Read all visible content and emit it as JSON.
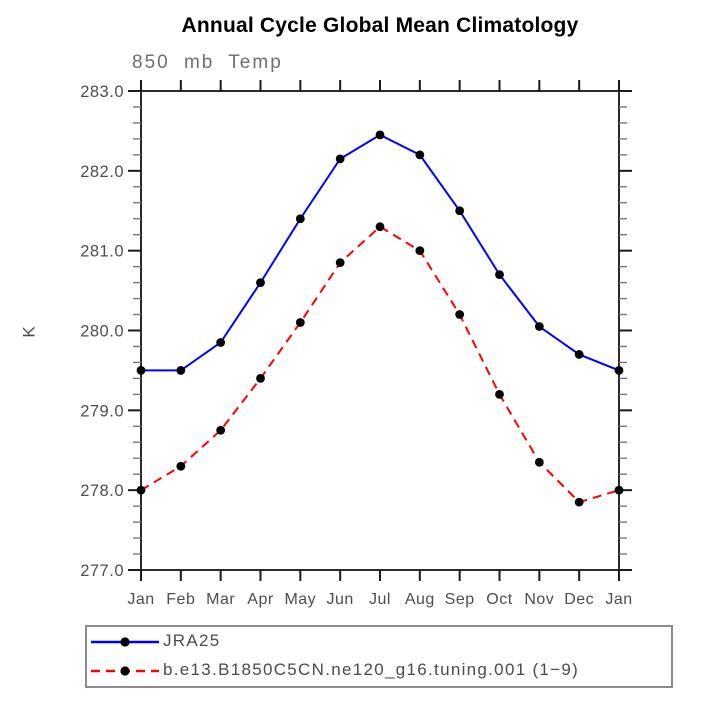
{
  "chart_data": {
    "type": "line",
    "title": "Annual Cycle Global Mean Climatology",
    "subtitle": "850 mb Temp",
    "ylabel": "K",
    "xlabel": "",
    "categories": [
      "Jan",
      "Feb",
      "Mar",
      "Apr",
      "May",
      "Jun",
      "Jul",
      "Aug",
      "Sep",
      "Oct",
      "Nov",
      "Dec",
      "Jan"
    ],
    "ylim": [
      277.0,
      283.0
    ],
    "y_major_ticks": [
      277.0,
      278.0,
      279.0,
      280.0,
      281.0,
      282.0,
      283.0
    ],
    "y_major_tick_labels": [
      "277.0",
      "278.0",
      "279.0",
      "280.0",
      "281.0",
      "282.0",
      "283.0"
    ],
    "y_minor_step": 0.2,
    "grid": "off",
    "legend_position": "bottom-left-box",
    "marker": "filled-circle",
    "marker_color": "#000000",
    "series": [
      {
        "name": "JRA25",
        "color": "#0000ff",
        "style": "solid",
        "values": [
          279.5,
          279.5,
          279.85,
          280.6,
          281.4,
          282.15,
          282.45,
          282.2,
          281.5,
          280.7,
          280.05,
          279.7,
          279.5
        ]
      },
      {
        "name": "b.e13.B1850C5CN.ne120_g16.tuning.001 (1−9)",
        "color": "#ff0000",
        "style": "dashed",
        "values": [
          278.0,
          278.3,
          278.75,
          279.4,
          280.1,
          280.85,
          281.3,
          281.0,
          280.2,
          279.2,
          278.35,
          277.85,
          278.0
        ]
      }
    ]
  }
}
